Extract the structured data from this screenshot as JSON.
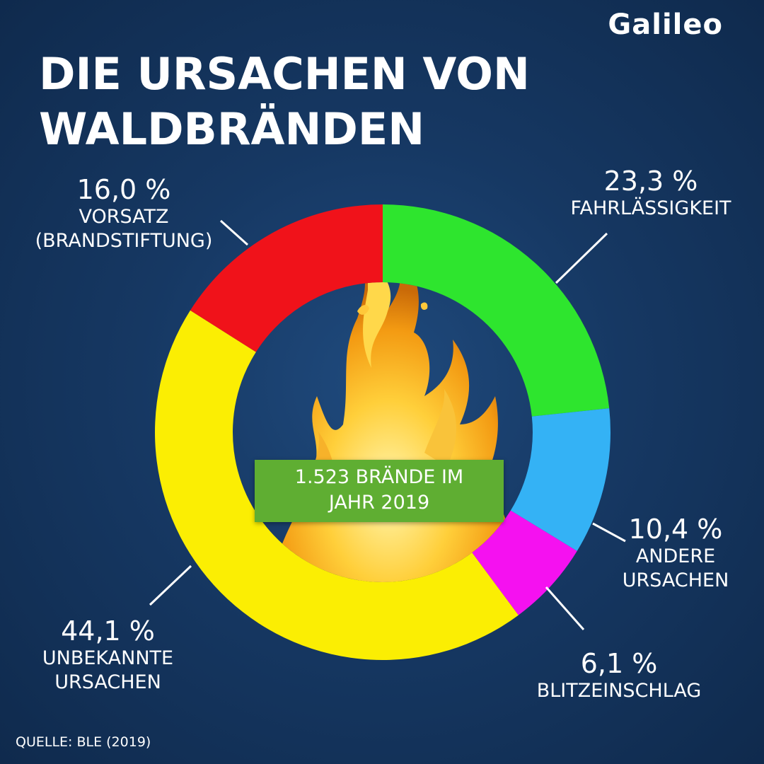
{
  "title_lines": [
    "DIE URSACHEN VON",
    "WALDBRÄNDEN"
  ],
  "logo_text": "Galileo",
  "center_text_lines": [
    "1.523 BRÄNDE IM",
    "JAHR 2019"
  ],
  "source": "QUELLE: BLE (2019)",
  "colors": {
    "background": "#163863",
    "center_box": "#5fae32"
  },
  "chart_data": {
    "type": "pie",
    "donut": true,
    "title": "DIE URSACHEN VON WALDBRÄNDEN",
    "slices": [
      {
        "label_lines": [
          "FAHRLÄSSIGKEIT"
        ],
        "pct_label": "23,3 %",
        "value": 23.3,
        "color": "#2ee52e"
      },
      {
        "label_lines": [
          "ANDERE",
          "URSACHEN"
        ],
        "pct_label": "10,4 %",
        "value": 10.4,
        "color": "#34b2f5"
      },
      {
        "label_lines": [
          "BLITZEINSCHLAG"
        ],
        "pct_label": "6,1 %",
        "value": 6.1,
        "color": "#f511f0"
      },
      {
        "label_lines": [
          "UNBEKANNTE",
          "URSACHEN"
        ],
        "pct_label": "44,1 %",
        "value": 44.1,
        "color": "#fbee03"
      },
      {
        "label_lines": [
          "VORSATZ",
          "(BRANDSTIFTUNG)"
        ],
        "pct_label": "16,0 %",
        "value": 16.0,
        "color": "#f0121a"
      }
    ],
    "start_angle_deg": 0,
    "direction": "clockwise"
  }
}
